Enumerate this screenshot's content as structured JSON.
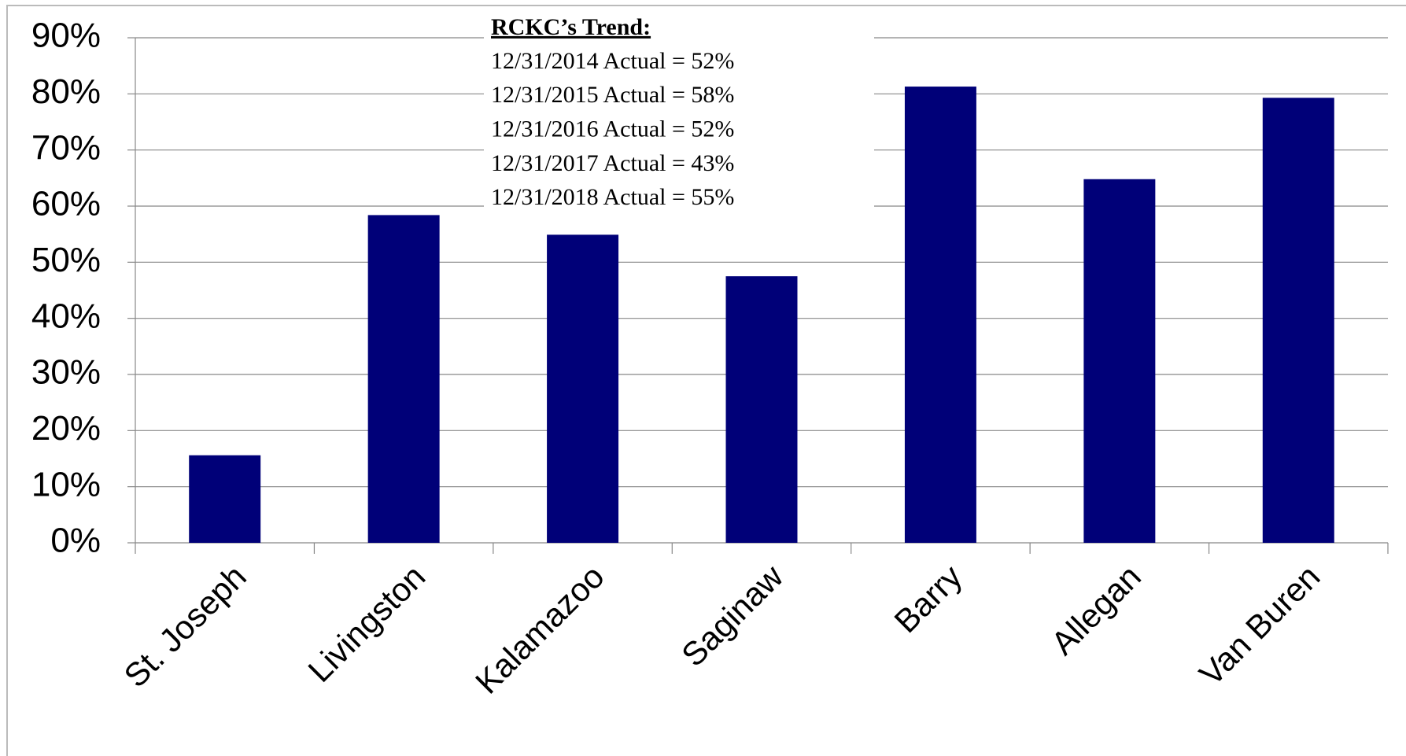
{
  "chart_data": {
    "type": "bar",
    "categories": [
      "St. Joseph",
      "Livingston",
      "Kalamazoo",
      "Saginaw",
      "Barry",
      "Allegan",
      "Van Buren"
    ],
    "values": [
      15.6,
      58.4,
      54.9,
      47.5,
      81.3,
      64.8,
      79.3
    ],
    "color": "#000078",
    "ylim": [
      0,
      90
    ],
    "yticks": [
      {
        "value": 0,
        "label": "0%"
      },
      {
        "value": 10,
        "label": "10%"
      },
      {
        "value": 20,
        "label": "20%"
      },
      {
        "value": 30,
        "label": "30%"
      },
      {
        "value": 40,
        "label": "40%"
      },
      {
        "value": 50,
        "label": "50%"
      },
      {
        "value": 60,
        "label": "60%"
      },
      {
        "value": 70,
        "label": "70%"
      },
      {
        "value": 80,
        "label": "80%"
      },
      {
        "value": 90,
        "label": "90%"
      }
    ],
    "grid": true,
    "annotation_title": "RCKC’s Trend:",
    "annotations": [
      "12/31/2014 Actual = 52%",
      "12/31/2015 Actual = 58%",
      "12/31/2016 Actual = 52%",
      "12/31/2017 Actual = 43%",
      "12/31/2018 Actual = 55%"
    ]
  }
}
